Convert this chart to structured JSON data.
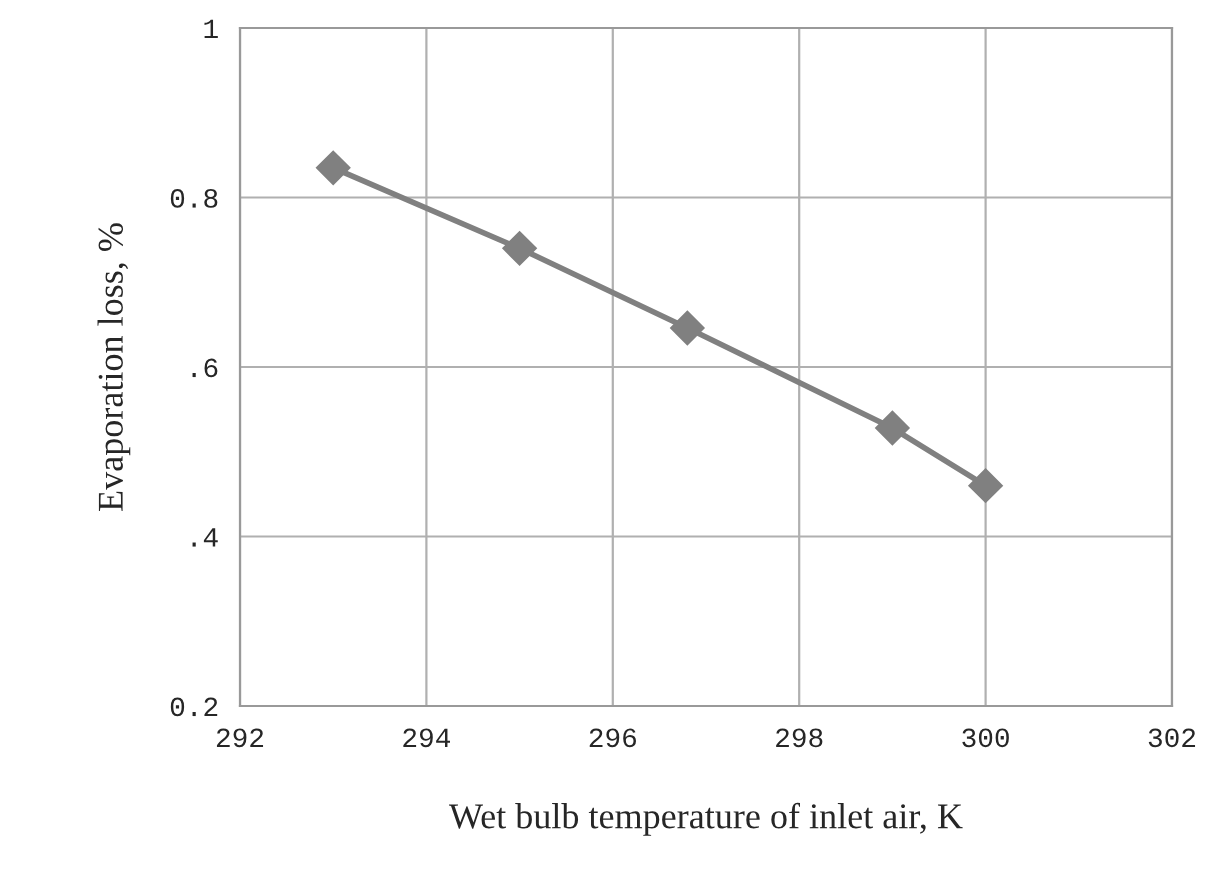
{
  "chart_data": {
    "type": "line",
    "xlabel": "Wet bulb temperature of inlet air, K",
    "ylabel": "Evaporation loss, %",
    "x": [
      293,
      295,
      296.8,
      299,
      300
    ],
    "series": [
      {
        "color": "#808080",
        "values": [
          0.835,
          0.74,
          0.646,
          0.528,
          0.46
        ]
      }
    ],
    "xlim": [
      292,
      302
    ],
    "xticks": [
      292,
      294,
      296,
      298,
      300,
      302
    ],
    "ylim": [
      0.2,
      1
    ],
    "yticks": [
      {
        "value": 0.2,
        "label": "0.2"
      },
      {
        "value": 0.4,
        "label": ".4"
      },
      {
        "value": 0.6,
        "label": ".6"
      },
      {
        "value": 0.8,
        "label": "0.8"
      },
      {
        "value": 1,
        "label": "1"
      }
    ],
    "grid": true,
    "marker": "diamond",
    "line_style": "solid",
    "legend": false
  }
}
